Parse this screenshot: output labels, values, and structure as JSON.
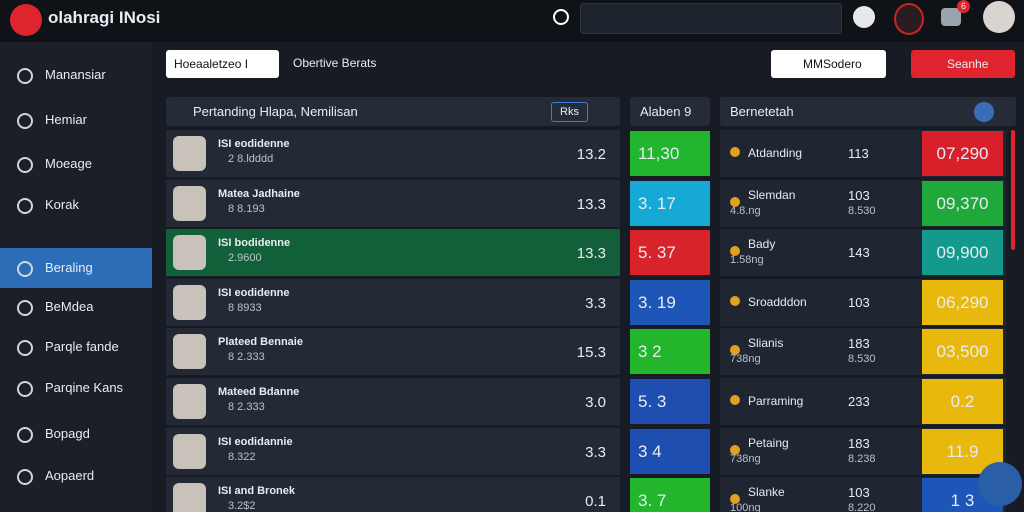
{
  "header": {
    "title": "olahragi INosi",
    "badge": "6"
  },
  "sidebar": {
    "items": [
      "Manansiar",
      "Hemiar",
      "Moeage",
      "Korak",
      "Beraling",
      "BeMdea",
      "Parqle fande",
      "Parqine Kans",
      "Bopagd",
      "Aopaerd"
    ],
    "active": 4
  },
  "toolbar": {
    "input": "Hoeaaletzeo I",
    "tab": "Obertive Berats",
    "dropdown": "MMSodero",
    "button": "Seanhe"
  },
  "panels": {
    "left_title": "Pertanding Hlapa, Nemilisan",
    "left_badge": "Rks",
    "middle_title": "Alaben 9",
    "right_title": "Bernetetah"
  },
  "rows": [
    {
      "name": "ISI eodidenne",
      "sub": "2 8.ldddd",
      "value": "13.2",
      "odds": "11,30",
      "odds_color": "#22b52e",
      "label": "Atdanding",
      "label_sub": "",
      "num": "113",
      "num_sub": "",
      "price": "07,290",
      "price_color": "#d8202a",
      "highlight": false
    },
    {
      "name": "Matea Jadhaine",
      "sub": "8 8.193",
      "value": "13.3",
      "odds": "3.  17",
      "odds_color": "#17a9d6",
      "label": "Slemdan",
      "label_sub": "4.8.ng",
      "num": "103",
      "num_sub": "8.530",
      "price": "09,370",
      "price_color": "#20a83a",
      "highlight": false
    },
    {
      "name": "ISI bodidenne",
      "sub": "2.9600",
      "value": "13.3",
      "odds": "5.  37",
      "odds_color": "#d9232b",
      "label": "Bady",
      "label_sub": "1.58ng",
      "num": "143",
      "num_sub": "",
      "price": "09,900",
      "price_color": "#149a8c",
      "highlight": true
    },
    {
      "name": "ISI eodidenne",
      "sub": "8 8933",
      "value": "3.3",
      "odds": "3.  19",
      "odds_color": "#1e56b8",
      "label": "Sroadddon",
      "label_sub": "",
      "num": "103",
      "num_sub": "",
      "price": "06,290",
      "price_color": "#e9b80d",
      "highlight": false
    },
    {
      "name": "Plateed Bennaie",
      "sub": "8 2.333",
      "value": "15.3",
      "odds": "3   2",
      "odds_color": "#23b52c",
      "label": "Slianis",
      "label_sub": "738ng",
      "num": "183",
      "num_sub": "8.530",
      "price": "03,500",
      "price_color": "#e9b80d",
      "highlight": false
    },
    {
      "name": "Mateed Bdanne",
      "sub": "8 2.333",
      "value": "3.0",
      "odds": "5.  3",
      "odds_color": "#1e4fb0",
      "label": "Parraming",
      "label_sub": "",
      "num": "233",
      "num_sub": "",
      "price": "0.2",
      "price_color": "#e9b80d",
      "highlight": false
    },
    {
      "name": "ISI eodidannie",
      "sub": "8.322",
      "value": "3.3",
      "odds": "3   4",
      "odds_color": "#1e4fb0",
      "label": "Petaing",
      "label_sub": "738ng",
      "num": "183",
      "num_sub": "8.238",
      "price": "11.9",
      "price_color": "#e9b80d",
      "highlight": false
    },
    {
      "name": "ISI and Bronek",
      "sub": "3.2$2",
      "value": "0.1",
      "odds": "3.  7",
      "odds_color": "#23b52c",
      "label": "Slanke",
      "label_sub": "100ng",
      "num": "103",
      "num_sub": "8.220",
      "price": "1  3",
      "price_color": "#1e56b8",
      "highlight": false
    }
  ]
}
